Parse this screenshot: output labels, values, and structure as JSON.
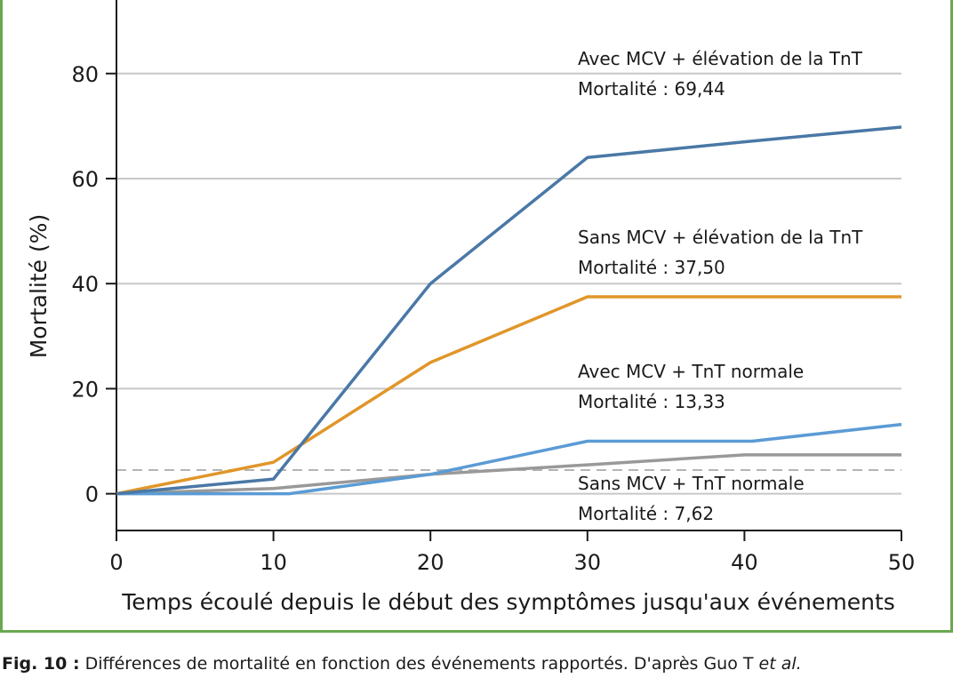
{
  "chart_data": {
    "type": "line",
    "xlabel": "Temps écoulé depuis le début des symptômes jusqu'aux événements",
    "ylabel": "Mortalité (%)",
    "x_ticks": [
      0,
      10,
      20,
      30,
      40,
      50
    ],
    "y_ticks": [
      0,
      20,
      40,
      60,
      80
    ],
    "xlim": [
      0,
      50
    ],
    "ylim": [
      -7,
      94
    ],
    "grid": "horizontal",
    "reference_line": {
      "y": 4.5,
      "style": "dashed"
    },
    "series": [
      {
        "color": "#4a78a6",
        "x": [
          0,
          10,
          20,
          30,
          40,
          50
        ],
        "y": [
          0,
          2.8,
          40,
          64,
          67,
          69.8
        ]
      },
      {
        "color": "#e0962a",
        "x": [
          0,
          10,
          20,
          30,
          40,
          50
        ],
        "y": [
          0,
          6,
          25,
          37.5,
          37.5,
          37.5
        ]
      },
      {
        "color": "#5b9bd5",
        "x": [
          0,
          11,
          20,
          30,
          40.5,
          50
        ],
        "y": [
          0,
          0,
          3.7,
          10,
          10,
          13.2
        ]
      },
      {
        "color": "#999999",
        "x": [
          0,
          10,
          20,
          30,
          40,
          50
        ],
        "y": [
          0,
          1,
          3.7,
          5.5,
          7.4,
          7.4
        ]
      }
    ],
    "annotations": [
      {
        "line1": "Avec MCV + élévation de la TnT",
        "line2": "Mortalité : 69,44"
      },
      {
        "line1": "Sans MCV + élévation de la TnT",
        "line2": "Mortalité : 37,50"
      },
      {
        "line1": "Avec MCV + TnT normale",
        "line2": "Mortalité : 13,33"
      },
      {
        "line1": "Sans MCV + TnT normale",
        "line2": "Mortalité : 7,62"
      }
    ]
  },
  "caption": {
    "label": "Fig. 10 :",
    "text": " Différences de mortalité en fonction des événements rapportés. D'après Guo T ",
    "italic": "et al."
  }
}
